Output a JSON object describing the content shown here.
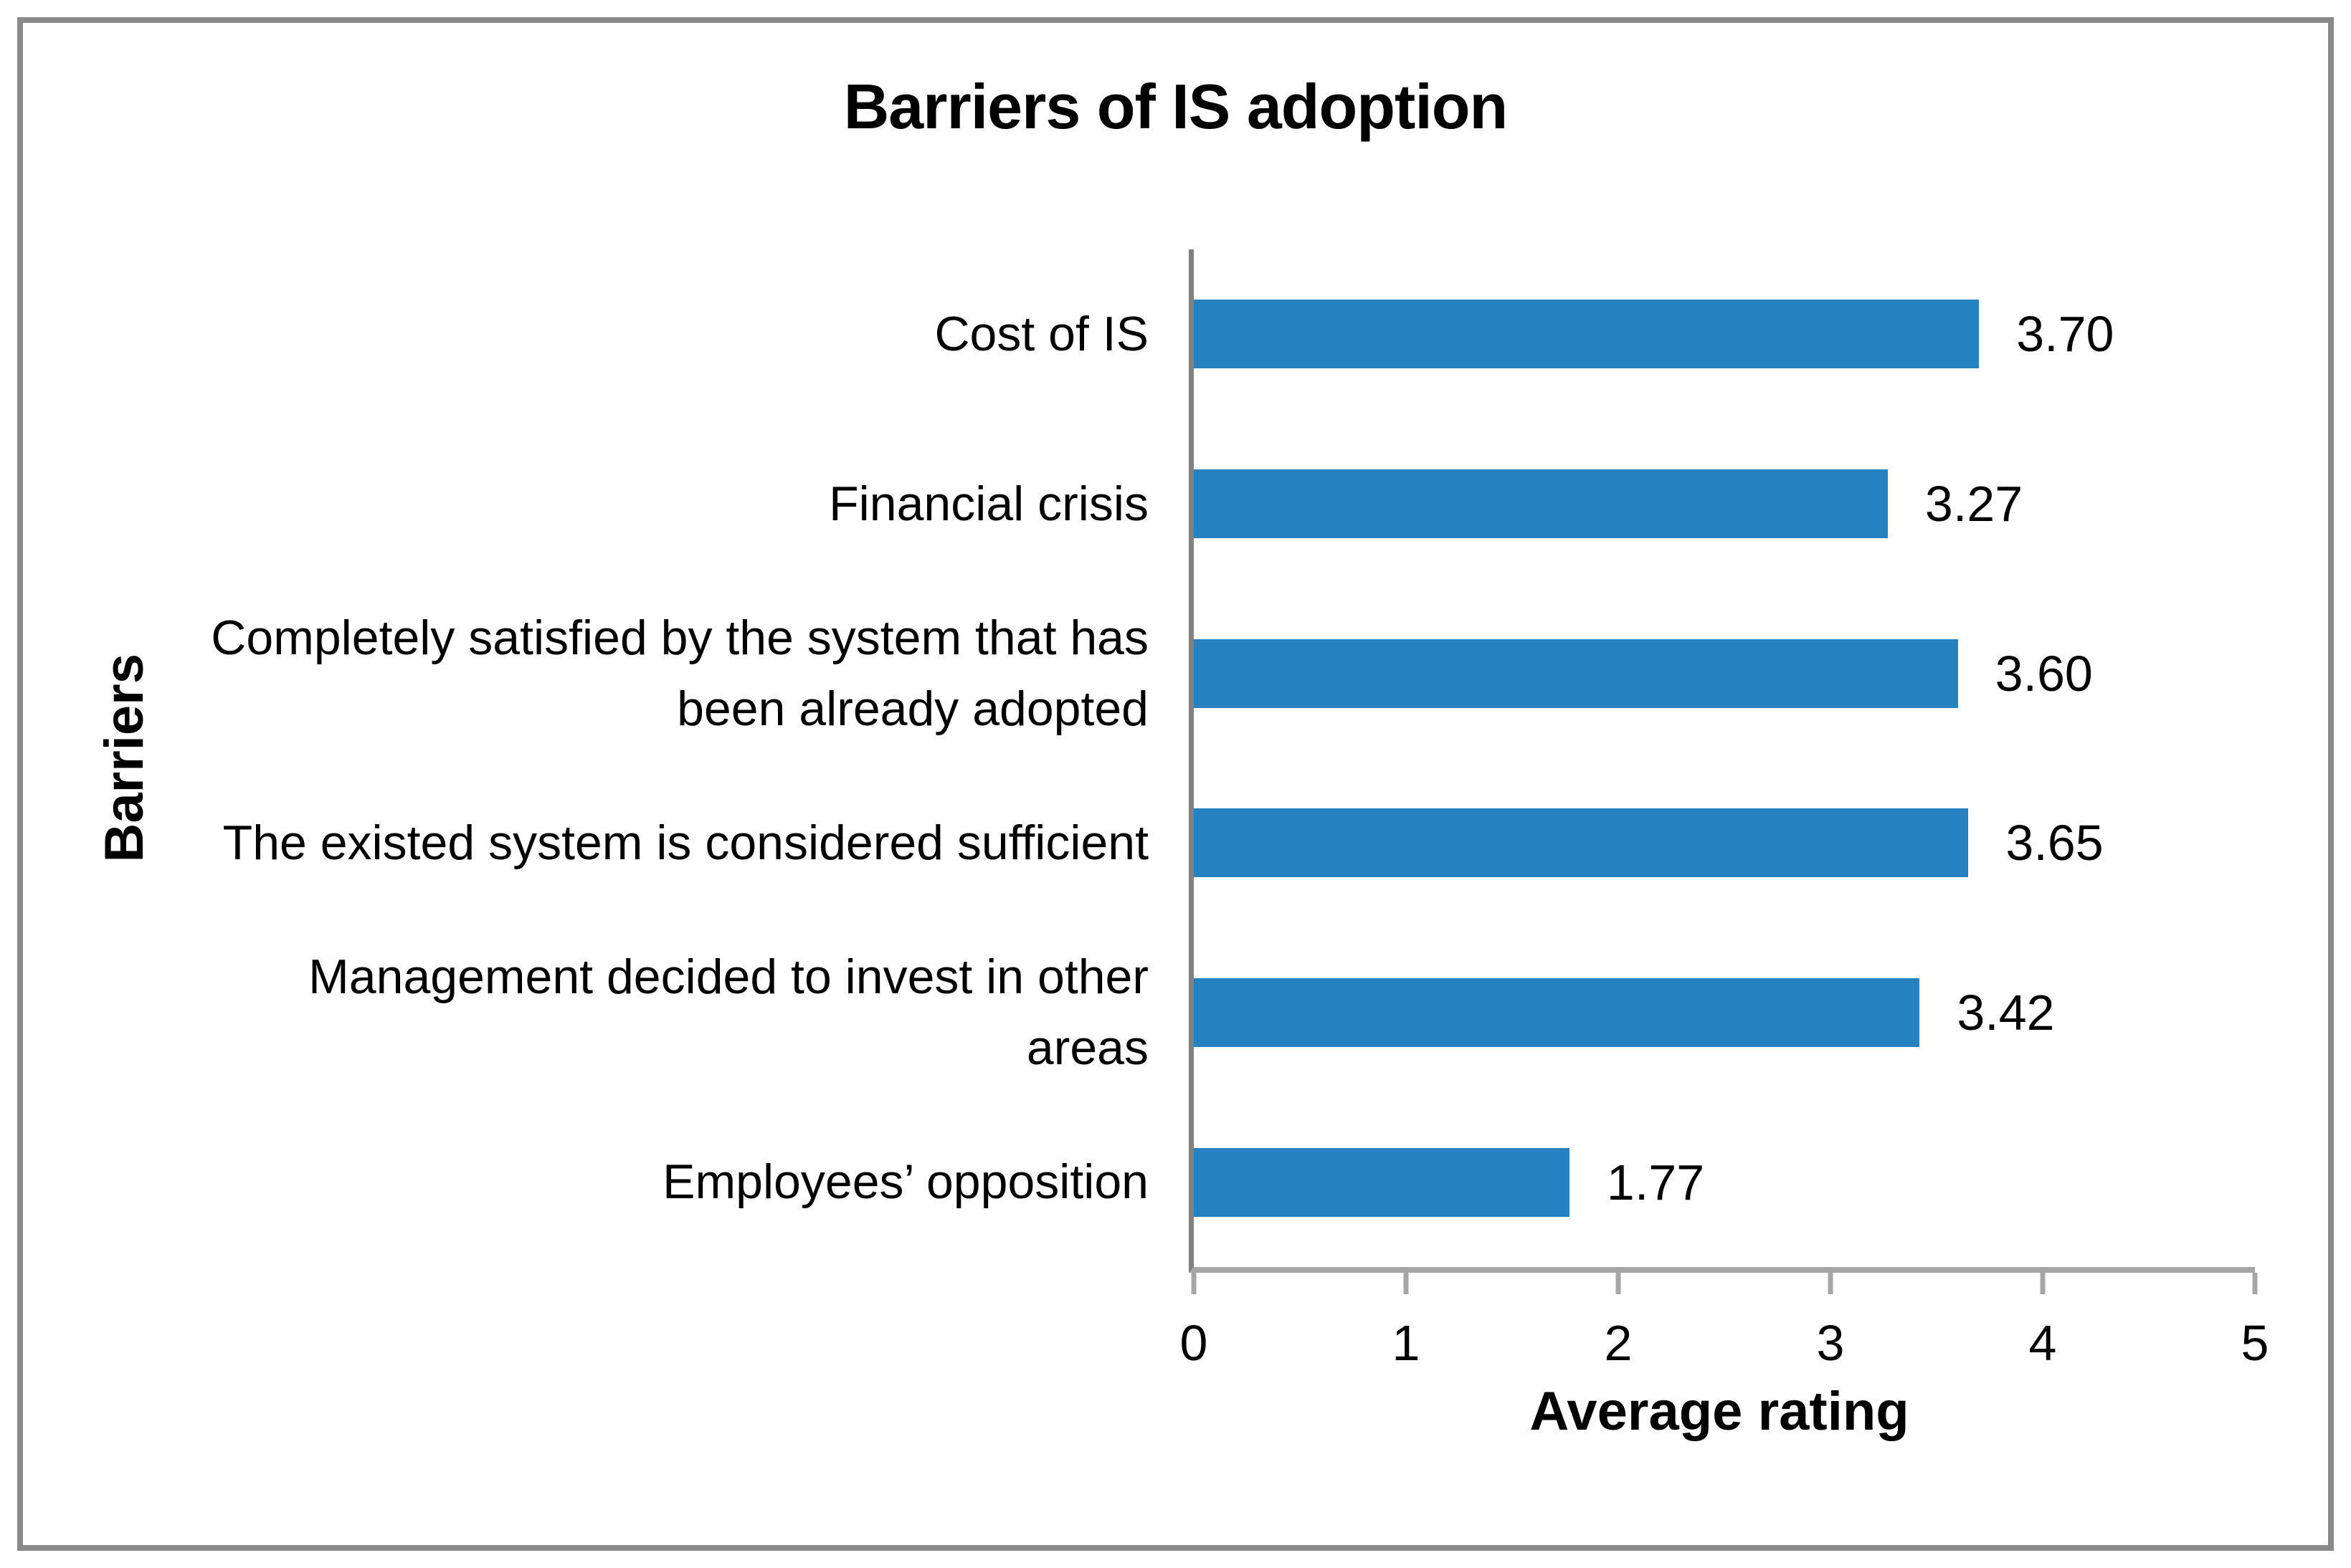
{
  "frame": {
    "border_color": "#8A8A8A",
    "background_color": "#FFFFFF"
  },
  "chart_data": {
    "type": "bar",
    "orientation": "horizontal",
    "title": "Barriers of IS adoption",
    "xlabel": "Average rating",
    "ylabel": "Barriers",
    "categories": [
      "Cost of IS",
      "Financial crisis",
      "Completely satisfied by the system that has been already adopted",
      "The existed system is considered sufficient",
      "Management decided to invest in other areas",
      "Employees’ opposition"
    ],
    "values": [
      3.7,
      3.27,
      3.6,
      3.65,
      3.42,
      1.77
    ],
    "value_labels": [
      "3.70",
      "3.27",
      "3.60",
      "3.65",
      "3.42",
      "1.77"
    ],
    "xlim": [
      0,
      5
    ],
    "x_ticks": [
      "0",
      "1",
      "2",
      "3",
      "4",
      "5"
    ],
    "bar_color": "#2581BF",
    "y_axis_color": "#808080",
    "x_axis_color": "#A6A6A6",
    "text_color": "#000000",
    "grid": false,
    "legend": false
  }
}
